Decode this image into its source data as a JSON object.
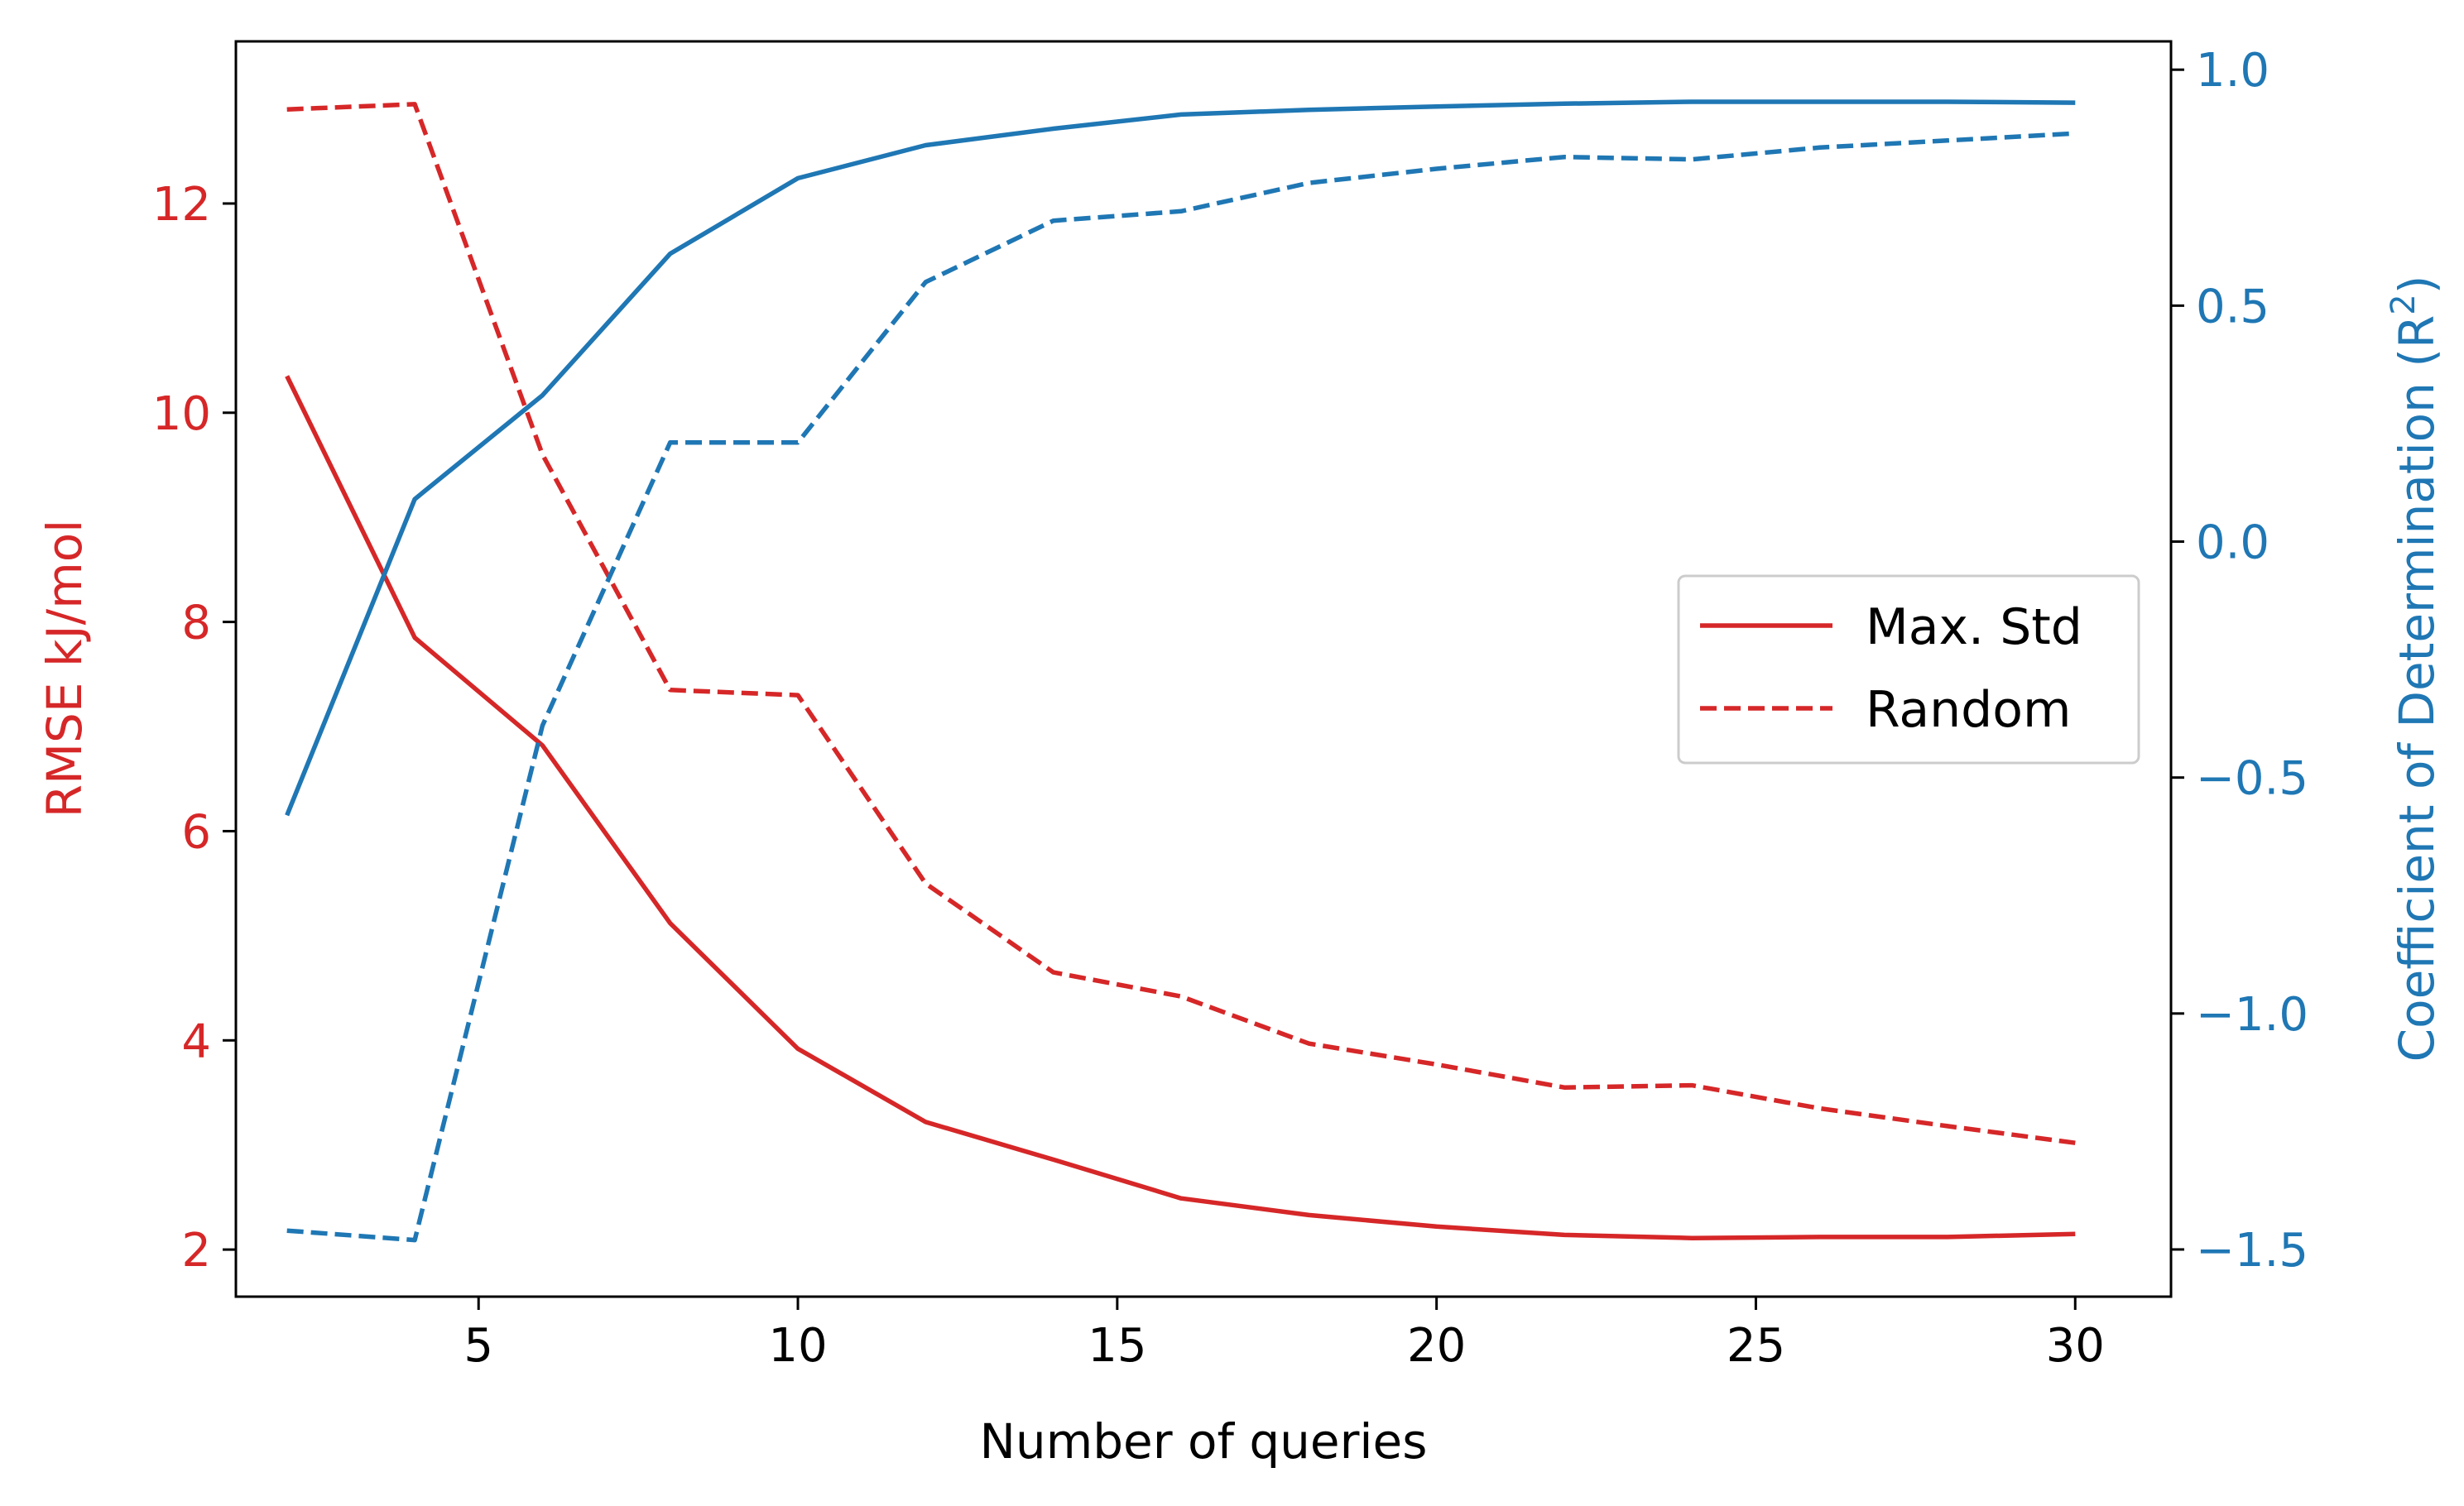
{
  "colors": {
    "rmse": "#d62728",
    "r2": "#1f77b4",
    "axis": "#000000",
    "background": "#ffffff"
  },
  "chart_data": {
    "type": "line",
    "title": "",
    "xlabel": "Number of queries",
    "ylabel_left": "RMSE kJ/mol",
    "ylabel_right": "Coefficient of Determination (R",
    "ylabel_right_sup": "2",
    "ylabel_right_close": ")",
    "xlim": [
      1.2,
      31.5
    ],
    "ylim_left": [
      1.55,
      13.55
    ],
    "ylim_right": [
      -1.6,
      1.06
    ],
    "x_ticks": [
      5,
      10,
      15,
      20,
      25,
      30
    ],
    "x_tick_labels": [
      "5",
      "10",
      "15",
      "20",
      "25",
      "30"
    ],
    "y_left_ticks": [
      2,
      4,
      6,
      8,
      10,
      12
    ],
    "y_left_tick_labels": [
      "2",
      "4",
      "6",
      "8",
      "10",
      "12"
    ],
    "y_right_ticks": [
      1.0,
      0.5,
      0.0,
      -0.5,
      -1.0,
      -1.5
    ],
    "y_right_tick_labels": [
      "1.0",
      "0.5",
      "0.0",
      "−0.5",
      "−1.0",
      "−1.5"
    ],
    "grid": false,
    "legend": {
      "position": "center-right",
      "entries": [
        {
          "label": "Max. Std",
          "style": "solid"
        },
        {
          "label": "Random",
          "style": "dashed"
        }
      ]
    },
    "x": [
      2,
      4,
      6,
      8,
      10,
      12,
      14,
      16,
      18,
      20,
      22,
      24,
      26,
      28,
      30
    ],
    "series": [
      {
        "metric": "RMSE",
        "strategy": "Max. Std",
        "axis": "left",
        "style": "solid",
        "values": [
          10.35,
          7.85,
          6.82,
          5.12,
          3.92,
          3.22,
          2.86,
          2.49,
          2.33,
          2.22,
          2.14,
          2.11,
          2.12,
          2.12,
          2.15
        ]
      },
      {
        "metric": "RMSE",
        "strategy": "Random",
        "axis": "left",
        "style": "dashed",
        "values": [
          12.9,
          12.95,
          9.6,
          7.35,
          7.3,
          5.5,
          4.65,
          4.42,
          3.97,
          3.77,
          3.55,
          3.57,
          3.35,
          3.18,
          3.02
        ]
      },
      {
        "metric": "R2",
        "strategy": "Max. Std",
        "axis": "right",
        "style": "solid",
        "values": [
          -0.58,
          0.09,
          0.31,
          0.61,
          0.77,
          0.84,
          0.875,
          0.905,
          0.915,
          0.922,
          0.928,
          0.932,
          0.932,
          0.932,
          0.93
        ]
      },
      {
        "metric": "R2",
        "strategy": "Random",
        "axis": "right",
        "style": "dashed",
        "values": [
          -1.46,
          -1.48,
          -0.39,
          0.21,
          0.21,
          0.55,
          0.68,
          0.7,
          0.76,
          0.79,
          0.815,
          0.81,
          0.835,
          0.85,
          0.865
        ]
      }
    ]
  }
}
